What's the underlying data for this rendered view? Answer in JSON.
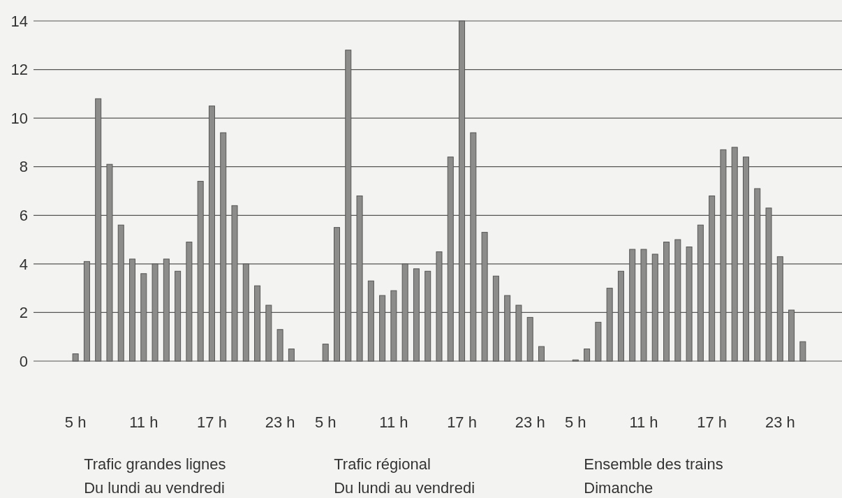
{
  "chart_data": {
    "type": "bar",
    "categories": [
      "5 h",
      null,
      null,
      null,
      null,
      null,
      "11 h",
      null,
      null,
      null,
      null,
      null,
      "17 h",
      null,
      null,
      null,
      null,
      null,
      "23 h",
      null,
      null,
      null,
      "5 h",
      null,
      null,
      null,
      null,
      null,
      "11 h",
      null,
      null,
      null,
      null,
      null,
      "17 h",
      null,
      null,
      null,
      null,
      null,
      "23 h",
      null,
      null,
      null,
      "5 h",
      null,
      null,
      null,
      null,
      null,
      "11 h",
      null,
      null,
      null,
      null,
      null,
      "17 h",
      null,
      null,
      null,
      null,
      null,
      "23 h",
      null,
      null
    ],
    "values": [
      0.3,
      4.1,
      10.8,
      8.1,
      5.6,
      4.2,
      3.6,
      4.0,
      4.2,
      3.7,
      4.9,
      7.4,
      10.5,
      9.4,
      6.4,
      4.0,
      3.1,
      2.3,
      1.3,
      0.5,
      null,
      null,
      0.7,
      5.5,
      12.8,
      6.8,
      3.3,
      2.7,
      2.9,
      4.0,
      3.8,
      3.7,
      4.5,
      8.4,
      14.0,
      9.4,
      5.3,
      3.5,
      2.7,
      2.3,
      1.8,
      0.6,
      null,
      null,
      0.05,
      0.5,
      1.6,
      3.0,
      3.7,
      4.6,
      4.6,
      4.4,
      4.9,
      5.0,
      4.7,
      5.6,
      6.8,
      8.7,
      8.8,
      8.4,
      7.1,
      6.3,
      4.3,
      2.1,
      0.8
    ],
    "color": "#8c8c8a",
    "ylim": [
      0,
      14
    ],
    "yticks": [
      0,
      2,
      4,
      6,
      8,
      10,
      12,
      14
    ],
    "grid": "y",
    "annotations": [
      "Trafic grandes lignes\nDu lundi au vendredi",
      "Trafic régional\nDu lundi au vendredi",
      "Ensemble des trains\nDimanche"
    ]
  }
}
